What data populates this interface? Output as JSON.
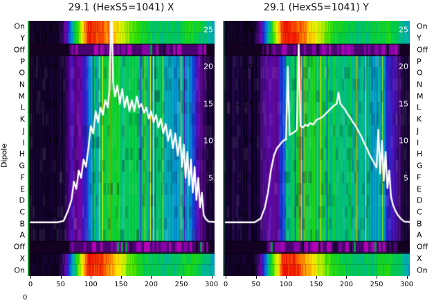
{
  "titles": {
    "left": "29.1 (HexS5=1041) X",
    "right": "29.1 (HexS5=1041) Y"
  },
  "ylabel": "Dipole",
  "row_labels": [
    "On",
    "Y",
    "Off",
    "P",
    "O",
    "N",
    "M",
    "L",
    "K",
    "J",
    "I",
    "H",
    "G",
    "F",
    "E",
    "D",
    "C",
    "B",
    "A",
    "Off",
    "X",
    "On"
  ],
  "inner_tick_labels": [
    "- 25",
    "- 20",
    "- 15",
    "- 10",
    "- 5",
    "- 0"
  ],
  "right_edge_labels": [
    "25",
    "20",
    "15",
    "10",
    "5"
  ],
  "x_tick_labels": [
    "0",
    "50",
    "100",
    "150",
    "200",
    "250",
    "300"
  ],
  "corner_label": "0",
  "chart_data": {
    "type": "heatmap",
    "rows": [
      "On",
      "Y",
      "Off",
      "P",
      "O",
      "N",
      "M",
      "L",
      "K",
      "J",
      "I",
      "H",
      "G",
      "F",
      "E",
      "D",
      "C",
      "B",
      "A",
      "Off",
      "X",
      "On"
    ],
    "x_axis": {
      "range": [
        0,
        310
      ],
      "ticks": [
        0,
        50,
        100,
        150,
        200,
        250,
        300
      ]
    },
    "inner_axis": {
      "ticks": [
        25,
        20,
        15,
        10,
        5,
        0
      ],
      "range": [
        0,
        25
      ]
    },
    "colormap_stops": [
      [
        0.0,
        "#0a0018"
      ],
      [
        0.12,
        "#2d0a5e"
      ],
      [
        0.2,
        "#7a00a8"
      ],
      [
        0.3,
        "#2222cc"
      ],
      [
        0.4,
        "#0077dd"
      ],
      [
        0.5,
        "#00b0b0"
      ],
      [
        0.58,
        "#00cc44"
      ],
      [
        0.66,
        "#33dd00"
      ],
      [
        0.74,
        "#aaee00"
      ],
      [
        0.82,
        "#ffee00"
      ],
      [
        0.9,
        "#ff8800"
      ],
      [
        1.0,
        "#ee1100"
      ]
    ],
    "profiles": {
      "band": [
        [
          0,
          0.02
        ],
        [
          45,
          0.02
        ],
        [
          55,
          0.15
        ],
        [
          70,
          0.5
        ],
        [
          85,
          0.8
        ],
        [
          95,
          1.0
        ],
        [
          115,
          0.97
        ],
        [
          130,
          0.9
        ],
        [
          145,
          0.82
        ],
        [
          160,
          0.72
        ],
        [
          180,
          0.62
        ],
        [
          200,
          0.58
        ],
        [
          220,
          0.55
        ],
        [
          240,
          0.56
        ],
        [
          255,
          0.6
        ],
        [
          270,
          0.62
        ],
        [
          285,
          0.55
        ],
        [
          300,
          0.5
        ],
        [
          310,
          0.45
        ]
      ],
      "mid": [
        [
          0,
          0.03
        ],
        [
          40,
          0.03
        ],
        [
          55,
          0.06
        ],
        [
          65,
          0.18
        ],
        [
          75,
          0.22
        ],
        [
          85,
          0.2
        ],
        [
          95,
          0.35
        ],
        [
          100,
          0.5
        ],
        [
          110,
          0.55
        ],
        [
          130,
          0.6
        ],
        [
          150,
          0.58
        ],
        [
          170,
          0.56
        ],
        [
          190,
          0.55
        ],
        [
          210,
          0.52
        ],
        [
          230,
          0.5
        ],
        [
          250,
          0.48
        ],
        [
          260,
          0.45
        ],
        [
          270,
          0.3
        ],
        [
          280,
          0.22
        ],
        [
          288,
          0.12
        ],
        [
          295,
          0.05
        ],
        [
          310,
          0.03
        ]
      ],
      "off": [
        [
          0,
          0
        ],
        [
          55,
          0
        ],
        [
          65,
          0.5
        ],
        [
          75,
          1
        ],
        [
          265,
          1
        ],
        [
          280,
          0.6
        ],
        [
          290,
          0.2
        ],
        [
          300,
          0
        ]
      ]
    },
    "plots": [
      {
        "name": "X",
        "title": "29.1 (HexS5=1041) X",
        "overlay_curve": [
          [
            0,
            -1
          ],
          [
            45,
            -1
          ],
          [
            55,
            -0.8
          ],
          [
            62,
            0.5
          ],
          [
            68,
            2
          ],
          [
            72,
            4.5
          ],
          [
            76,
            3.5
          ],
          [
            80,
            6
          ],
          [
            84,
            5
          ],
          [
            88,
            7.5
          ],
          [
            92,
            6.5
          ],
          [
            96,
            9
          ],
          [
            100,
            12
          ],
          [
            104,
            11
          ],
          [
            108,
            14
          ],
          [
            112,
            12.5
          ],
          [
            116,
            14.5
          ],
          [
            120,
            13.5
          ],
          [
            124,
            15.5
          ],
          [
            128,
            14.5
          ],
          [
            131,
            17
          ],
          [
            134,
            29
          ],
          [
            137,
            18
          ],
          [
            140,
            16
          ],
          [
            144,
            17.5
          ],
          [
            148,
            15
          ],
          [
            152,
            17
          ],
          [
            156,
            14.5
          ],
          [
            160,
            16
          ],
          [
            164,
            14
          ],
          [
            168,
            15.5
          ],
          [
            172,
            14
          ],
          [
            176,
            16
          ],
          [
            180,
            14.5
          ],
          [
            184,
            15
          ],
          [
            188,
            13.8
          ],
          [
            192,
            14.5
          ],
          [
            196,
            13
          ],
          [
            200,
            14
          ],
          [
            204,
            12.5
          ],
          [
            208,
            13.5
          ],
          [
            212,
            11.8
          ],
          [
            216,
            13
          ],
          [
            220,
            11
          ],
          [
            224,
            12.3
          ],
          [
            228,
            10
          ],
          [
            232,
            11.5
          ],
          [
            236,
            9
          ],
          [
            240,
            11
          ],
          [
            244,
            8
          ],
          [
            248,
            10.5
          ],
          [
            251,
            6.5
          ],
          [
            254,
            9.5
          ],
          [
            257,
            5
          ],
          [
            260,
            8.5
          ],
          [
            263,
            4
          ],
          [
            266,
            7.5
          ],
          [
            269,
            3
          ],
          [
            272,
            6.5
          ],
          [
            275,
            2
          ],
          [
            278,
            5
          ],
          [
            281,
            1
          ],
          [
            284,
            3
          ],
          [
            287,
            0
          ],
          [
            290,
            -0.5
          ],
          [
            295,
            -0.9
          ],
          [
            310,
            -1
          ]
        ]
      },
      {
        "name": "Y",
        "title": "29.1 (HexS5=1041) Y",
        "overlay_curve": [
          [
            0,
            -1
          ],
          [
            48,
            -1
          ],
          [
            58,
            -0.5
          ],
          [
            65,
            1
          ],
          [
            70,
            3
          ],
          [
            75,
            6
          ],
          [
            80,
            8
          ],
          [
            85,
            9
          ],
          [
            90,
            9.5
          ],
          [
            95,
            10
          ],
          [
            100,
            10.2
          ],
          [
            103,
            20
          ],
          [
            106,
            10.8
          ],
          [
            110,
            11
          ],
          [
            114,
            11.2
          ],
          [
            118,
            11.5
          ],
          [
            121,
            23
          ],
          [
            124,
            12
          ],
          [
            128,
            11.8
          ],
          [
            132,
            12.2
          ],
          [
            136,
            12
          ],
          [
            140,
            12.4
          ],
          [
            145,
            12.2
          ],
          [
            150,
            12.8
          ],
          [
            155,
            13
          ],
          [
            160,
            13.2
          ],
          [
            165,
            13.6
          ],
          [
            170,
            14
          ],
          [
            175,
            14.4
          ],
          [
            180,
            14.8
          ],
          [
            184,
            15
          ],
          [
            187,
            16.5
          ],
          [
            190,
            15
          ],
          [
            194,
            14.6
          ],
          [
            198,
            14.2
          ],
          [
            202,
            13.6
          ],
          [
            206,
            13.2
          ],
          [
            210,
            12.6
          ],
          [
            214,
            12.2
          ],
          [
            218,
            11.6
          ],
          [
            222,
            11
          ],
          [
            226,
            10.4
          ],
          [
            230,
            9.6
          ],
          [
            234,
            9
          ],
          [
            238,
            8.2
          ],
          [
            242,
            7.6
          ],
          [
            246,
            7
          ],
          [
            250,
            6.4
          ],
          [
            253,
            11.5
          ],
          [
            256,
            5.6
          ],
          [
            259,
            10
          ],
          [
            262,
            4.6
          ],
          [
            265,
            8.5
          ],
          [
            268,
            3.6
          ],
          [
            271,
            6
          ],
          [
            274,
            2.4
          ],
          [
            277,
            1.4
          ],
          [
            281,
            0.6
          ],
          [
            285,
            0
          ],
          [
            290,
            -0.5
          ],
          [
            296,
            -0.9
          ],
          [
            310,
            -1
          ]
        ]
      }
    ]
  }
}
